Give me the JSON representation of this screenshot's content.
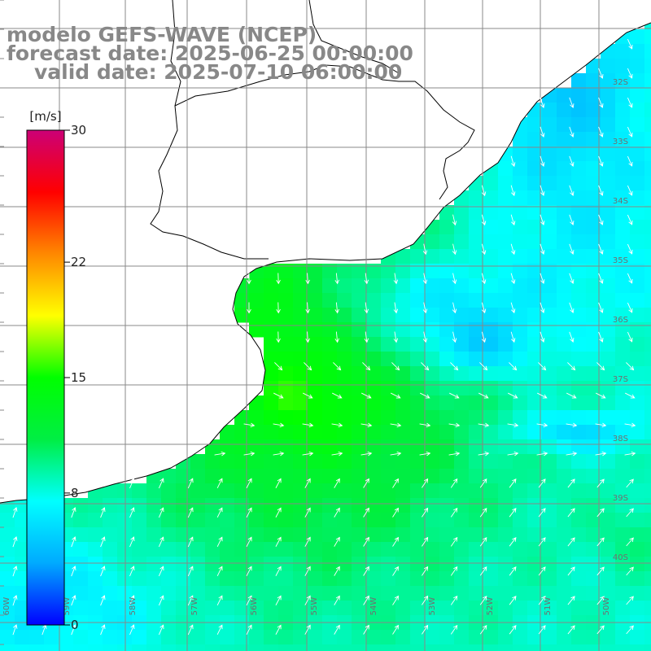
{
  "title": {
    "model": "modelo GEFS-WAVE (NCEP)",
    "forecast": "forecast date: 2025-06-25 00:00:00",
    "valid": "valid date: 2025-07-10 06:00:00"
  },
  "colorbar": {
    "unit": "[m/s]",
    "ticks": [
      "30",
      "22",
      "15",
      "8",
      "0"
    ],
    "tick_values": [
      30,
      22,
      15,
      8,
      0
    ],
    "range": [
      0,
      30
    ],
    "colors": [
      "#0000ff",
      "#00aaff",
      "#00ffff",
      "#00ee44",
      "#00ff00",
      "#ffff00",
      "#ff8800",
      "#ff0000",
      "#cc0077"
    ]
  },
  "map": {
    "lat_labels": [
      "32S",
      "33S",
      "34S",
      "35S",
      "36S",
      "37S",
      "38S",
      "39S",
      "40S"
    ],
    "lon_labels": [
      "60W",
      "59W",
      "58W",
      "57W",
      "56W",
      "55W",
      "54W",
      "53W",
      "52W",
      "51W",
      "50W"
    ],
    "land_color": "#ffffff",
    "grid_color": "#888888",
    "coast_color": "#000000",
    "arrow_color": "#ffffff"
  }
}
